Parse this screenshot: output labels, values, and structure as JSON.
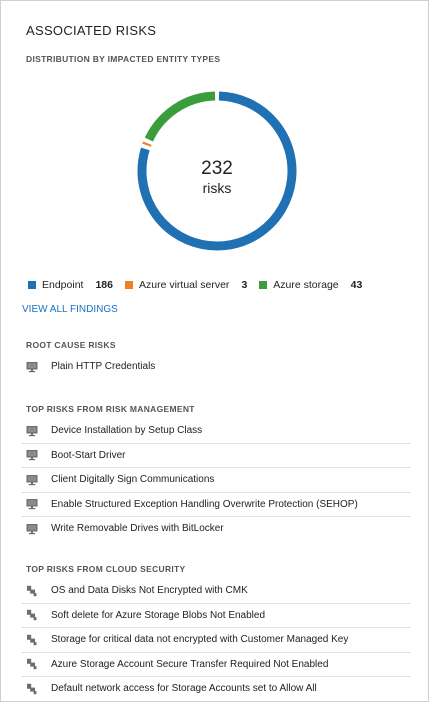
{
  "panel": {
    "title": "ASSOCIATED RISKS",
    "distribution_label": "DISTRIBUTION BY IMPACTED ENTITY TYPES"
  },
  "donut": {
    "total": "232",
    "unit": "risks",
    "segments": [
      {
        "name": "Endpoint",
        "value": 186,
        "color": "#2070b4"
      },
      {
        "name": "Azure virtual server",
        "value": 3,
        "color": "#f08020"
      },
      {
        "name": "Azure storage",
        "value": 43,
        "color": "#3b9c3b"
      }
    ]
  },
  "legend": [
    {
      "label": "Endpoint",
      "value": "186",
      "color": "#2070b4"
    },
    {
      "label": "Azure virtual server",
      "value": "3",
      "color": "#f08020"
    },
    {
      "label": "Azure storage",
      "value": "43",
      "color": "#3b9c3b"
    }
  ],
  "view_all_link": "VIEW ALL FINDINGS",
  "root_cause": {
    "label": "ROOT CAUSE RISKS",
    "items": [
      {
        "text": "Plain HTTP Credentials",
        "icon": "monitor-icon"
      }
    ]
  },
  "risk_management": {
    "label": "TOP RISKS FROM RISK MANAGEMENT",
    "items": [
      {
        "text": "Device Installation by Setup Class",
        "icon": "monitor-icon"
      },
      {
        "text": "Boot-Start Driver",
        "icon": "monitor-icon"
      },
      {
        "text": "Client Digitally Sign Communications",
        "icon": "monitor-icon"
      },
      {
        "text": "Enable Structured Exception Handling Overwrite Protection (SEHOP)",
        "icon": "monitor-icon"
      },
      {
        "text": "Write Removable Drives with BitLocker",
        "icon": "monitor-icon"
      }
    ]
  },
  "cloud_security": {
    "label": "TOP RISKS FROM CLOUD SECURITY",
    "items": [
      {
        "text": "OS and Data Disks Not Encrypted with CMK",
        "icon": "cloud-resource-icon"
      },
      {
        "text": "Soft delete for Azure Storage Blobs Not Enabled",
        "icon": "cloud-resource-icon"
      },
      {
        "text": "Storage for critical data not encrypted with Customer Managed Key",
        "icon": "cloud-resource-icon"
      },
      {
        "text": "Azure Storage Account Secure Transfer Required Not Enabled",
        "icon": "cloud-resource-icon"
      },
      {
        "text": "Default network access for Storage Accounts set to Allow All",
        "icon": "cloud-resource-icon"
      }
    ]
  }
}
